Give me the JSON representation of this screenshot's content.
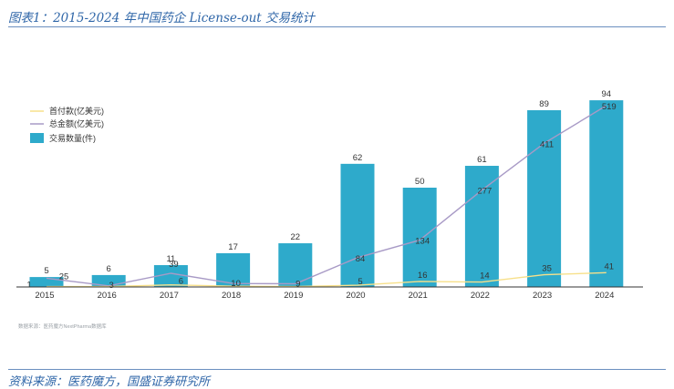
{
  "header": {
    "title": "图表1：2015-2024 年中国药企 License-out 交易统计"
  },
  "source_note": "数据来源：医药魔方NextPharma数据库",
  "footer": {
    "source": "资料来源：医药魔方，国盛证券研究所"
  },
  "colors": {
    "bar": "#2eaacb",
    "total_line": "#a89ac6",
    "first_line": "#f7e08a",
    "axis": "#333333",
    "title": "#2f66a8"
  },
  "chart_data": {
    "type": "bar",
    "categories": [
      "2015",
      "2016",
      "2017",
      "2018",
      "2019",
      "2020",
      "2021",
      "2022",
      "2023",
      "2024"
    ],
    "series": [
      {
        "name": "交易数量(件)",
        "type": "bar",
        "values": [
          5,
          6,
          11,
          17,
          22,
          62,
          50,
          61,
          89,
          94
        ]
      },
      {
        "name": "总金额(亿美元)",
        "type": "line",
        "values": [
          25,
          3,
          39,
          10,
          9,
          84,
          134,
          277,
          411,
          519
        ]
      },
      {
        "name": "首付款(亿美元)",
        "type": "line",
        "values": [
          1,
          1,
          6,
          2,
          1,
          5,
          16,
          14,
          35,
          41
        ]
      }
    ],
    "value_labels": {
      "count": [
        "5",
        "6",
        "11",
        "17",
        "22",
        "62",
        "50",
        "61",
        "89",
        "94"
      ],
      "total": [
        "25",
        "3",
        "39",
        "10",
        "9",
        "84",
        "134",
        "277",
        "411",
        "519"
      ],
      "first": [
        "1",
        "",
        "6",
        "",
        "",
        "5",
        "16",
        "14",
        "35",
        "41"
      ]
    },
    "legend": [
      "首付款(亿美元)",
      "总金额(亿美元)",
      "交易数量(件)"
    ],
    "legend_position": "top-left",
    "count_axis_range": [
      0,
      100
    ],
    "amount_axis_range": [
      0,
      550
    ],
    "grid": false
  }
}
